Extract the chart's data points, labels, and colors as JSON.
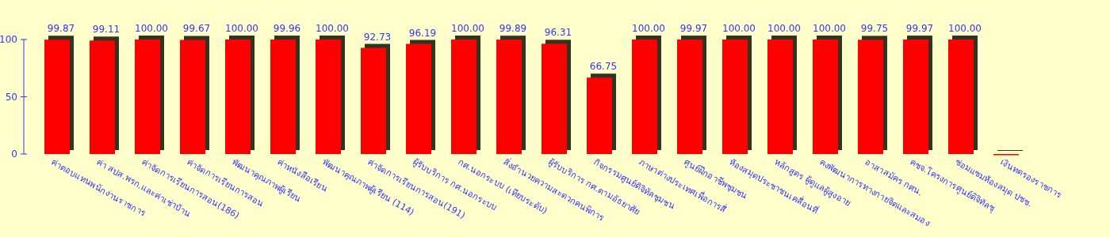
{
  "chart_data": {
    "type": "bar",
    "categories": [
      "ค่าตอบแทนพนักงานราชการ",
      "ค่า  สปส.พรก.และค่าเช่าบ้าน",
      "ค่าจัดการเรียนการสอน(186)",
      "ค่าจัดการเรียนการสอน",
      "พัฒนาคุณภาพผู้เรียน",
      "ค่าหนังสือเรียน",
      "พัฒนาคุณภาพผู้เรียน (114)",
      "ค่าจัดการเรียนการสอน(191)",
      "ผู้รับบริการ กศ.นอกระบบ",
      "กศ.นอกระบบ (เทียบระดับ)",
      "สิ่งอำนวยความสะดวกคนพิการ",
      "ผู้รับบริการ กศ.ตามอัธยาศัย",
      "กิจกรรมศูนย์ดิจิทัลชุมชน",
      "ภาษาต่างประเทศเพื่อการสื่",
      "ศูนย์ฝึกอาชีพชุมชน",
      "ห้องสมุดประชาชนเคลื่อนที่",
      "หลักสูตร ผู้ดูแลผู้สูงอาย",
      "คงพัฒนาการทางกายจิตและสมอง",
      "อาสาสมัคร กศน.",
      "คชจ.โครงการศูนย์ดิจิทัลชุ",
      "ซ่อมแซมห้องสมุด ปชช.",
      "เงินทดรองราชการ"
    ],
    "values": [
      99.87,
      99.11,
      100.0,
      99.67,
      100.0,
      99.96,
      100.0,
      92.73,
      96.19,
      100.0,
      99.89,
      96.31,
      66.75,
      100.0,
      99.97,
      100.0,
      100.0,
      100.0,
      99.75,
      99.97,
      100.0,
      0
    ],
    "value_labels": [
      "99.87",
      "99.11",
      "100.00",
      "99.67",
      "100.00",
      "99.96",
      "100.00",
      "92.73",
      "96.19",
      "100.00",
      "99.89",
      "96.31",
      "66.75",
      "100.00",
      "99.97",
      "100.00",
      "100.00",
      "100.00",
      "99.75",
      "99.97",
      "100.00",
      null
    ],
    "color": "#ff0000",
    "ylim": [
      0,
      100
    ],
    "yticks": [
      0,
      50,
      100
    ]
  }
}
